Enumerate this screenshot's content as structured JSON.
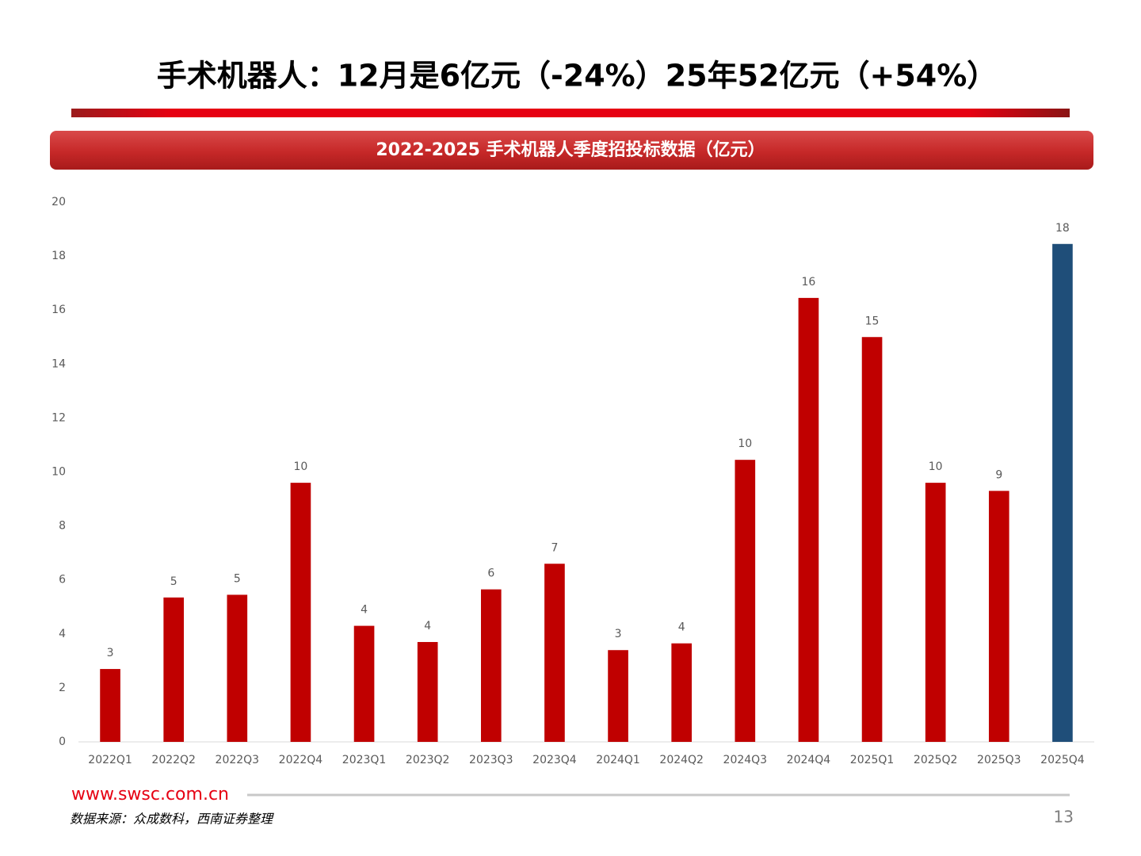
{
  "title": "手术机器人：12月是6亿元（-24%）25年52亿元（+54%）",
  "chart_data": {
    "type": "bar",
    "title": "2022-2025 手术机器人季度招投标数据（亿元）",
    "categories": [
      "2022Q1",
      "2022Q2",
      "2022Q3",
      "2022Q4",
      "2023Q1",
      "2023Q2",
      "2023Q3",
      "2023Q4",
      "2024Q1",
      "2024Q2",
      "2024Q3",
      "2024Q4",
      "2025Q1",
      "2025Q2",
      "2025Q3",
      "2025Q4"
    ],
    "values": [
      2.7,
      5.35,
      5.45,
      9.6,
      4.3,
      3.7,
      5.65,
      6.6,
      3.4,
      3.65,
      10.45,
      16.45,
      15.0,
      9.6,
      9.3,
      18.45
    ],
    "value_labels": [
      "3",
      "5",
      "5",
      "10",
      "4",
      "4",
      "6",
      "7",
      "3",
      "4",
      "10",
      "16",
      "15",
      "10",
      "9",
      "18"
    ],
    "colors": [
      "#c00000",
      "#c00000",
      "#c00000",
      "#c00000",
      "#c00000",
      "#c00000",
      "#c00000",
      "#c00000",
      "#c00000",
      "#c00000",
      "#c00000",
      "#c00000",
      "#c00000",
      "#c00000",
      "#c00000",
      "#1f4e79"
    ],
    "ylim": [
      0,
      20
    ],
    "yticks": [
      0,
      2,
      4,
      6,
      8,
      10,
      12,
      14,
      16,
      18,
      20
    ],
    "grid": false
  },
  "footer": {
    "website": "www.swsc.com.cn",
    "source": "数据来源：众成数科，西南证券整理",
    "page": "13"
  }
}
